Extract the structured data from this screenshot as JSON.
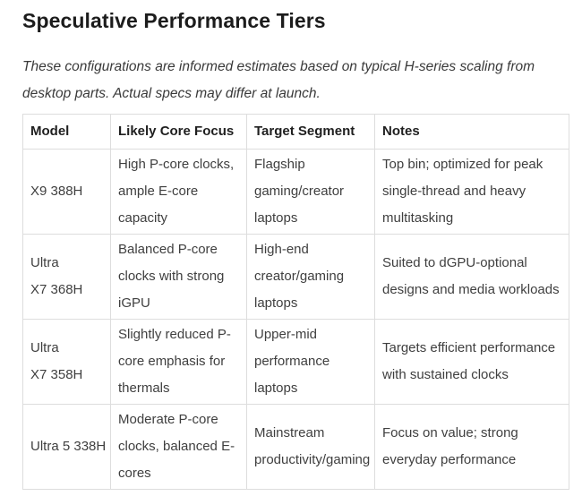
{
  "page": {
    "title": "Speculative Performance Tiers",
    "intro": "These configurations are informed estimates based on typical H-series scaling from desktop parts. Actual specs may differ at launch."
  },
  "table": {
    "headers": [
      {
        "key": "model",
        "label": "Model"
      },
      {
        "key": "core_focus",
        "label": "Likely Core Focus"
      },
      {
        "key": "target_segment",
        "label": "Target Segment"
      },
      {
        "key": "notes",
        "label": "Notes"
      }
    ],
    "rows": [
      {
        "model": "X9 388H",
        "core_focus": "High P-core clocks, ample E-core capacity",
        "target_segment": "Flagship gaming/creator laptops",
        "notes": "Top bin; optimized for peak single-thread and heavy multitasking"
      },
      {
        "model": "Ultra X7 368H",
        "core_focus": "Balanced P-core clocks with strong iGPU",
        "target_segment": "High-end creator/gaming laptops",
        "notes": "Suited to dGPU-optional designs and media workloads"
      },
      {
        "model": "Ultra X7 358H",
        "core_focus": "Slightly reduced P-core emphasis for thermals",
        "target_segment": "Upper-mid performance laptops",
        "notes": "Targets efficient performance with sustained clocks"
      },
      {
        "model": "Ultra 5 338H",
        "core_focus": "Moderate P-core clocks, balanced E-cores",
        "target_segment": "Mainstream productivity/gaming",
        "notes": "Focus on value; strong everyday performance"
      }
    ]
  },
  "colors": {
    "background": "#ffffff",
    "heading_text": "#1c1c1c",
    "body_text": "#3f3f3f",
    "table_border": "#dddddd"
  }
}
